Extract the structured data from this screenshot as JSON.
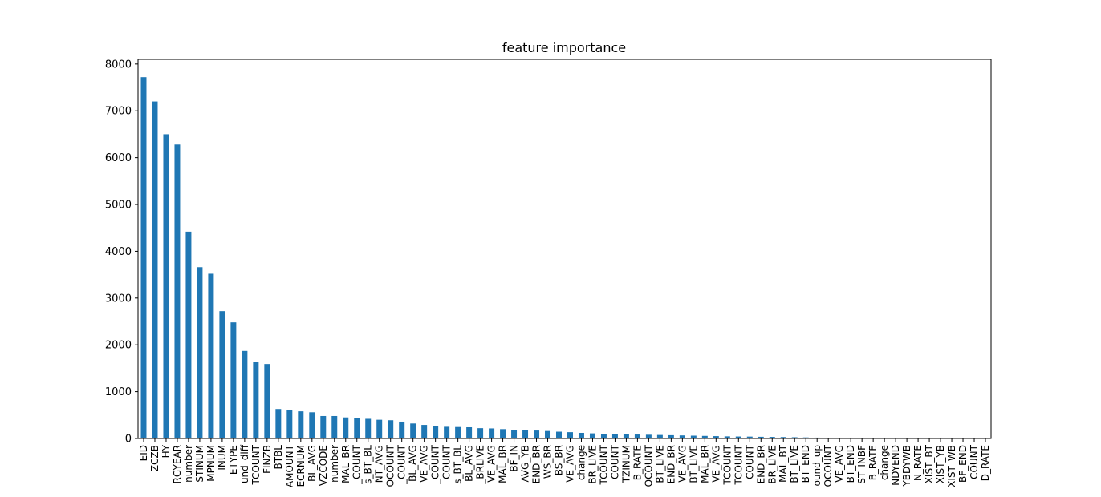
{
  "chart_data": {
    "type": "bar",
    "title": "feature importance",
    "xlabel": "",
    "ylabel": "",
    "ylim": [
      0,
      8100
    ],
    "yticks": [
      0,
      1000,
      2000,
      3000,
      4000,
      5000,
      6000,
      7000,
      8000
    ],
    "grid": false,
    "bar_color": "#1f77b4",
    "categories": [
      "EID",
      "ZCZB",
      "HY",
      "RGYEAR",
      "number",
      "STINUM",
      "MPNUM",
      "INUM",
      "ETYPE",
      "und_diff",
      "TCOUNT",
      "FINZB",
      "BTBL",
      "AMOUNT",
      "ECRNUM",
      "BL_AVG",
      "VZCODE",
      "number",
      "MAL_BR",
      "_COUNT",
      "s_BT_BL",
      "NT_AVG",
      "OCOUNT",
      "_COUNT",
      "BL_AVG",
      "VE_AVG",
      "_COUNT",
      "COUNT",
      "s_BT_BL",
      "BL_AVG",
      "_BRLIVE",
      "VE_AVG",
      "MAL_BR",
      "BF_IN",
      "AVG_YB",
      "END_BR",
      "WS_BR",
      "BS_BR",
      "VE_AVG",
      "change",
      "BR_LIVE",
      "TCOUNT",
      "COUNT",
      "TZINUM",
      "B_RATE",
      "OCOUNT",
      "BT_LIVE",
      "END_BR",
      "VE_AVG",
      "BT_LIVE",
      "MAL_BR",
      "VE_AVG",
      "TCOUNT",
      "TCOUNT",
      "COUNT",
      "END_BR",
      "BR_LIVE",
      "MAL_BT",
      "BT_LIVE",
      "BT_END",
      "ound_up",
      "OCOUNT",
      "VE_AVG",
      "BT_END",
      "ST_INBF",
      "B_RATE",
      "change",
      "NDYEND",
      "YBDYWB",
      "N_RATE",
      "XIST_BT",
      "XIST_YB",
      "XIST_WB",
      "BF_END",
      "COUNT",
      "D_RATE"
    ],
    "values": [
      7720,
      7200,
      6500,
      6280,
      4420,
      3660,
      3520,
      2720,
      2480,
      1870,
      1640,
      1590,
      630,
      610,
      580,
      560,
      480,
      480,
      450,
      440,
      420,
      400,
      390,
      360,
      320,
      290,
      270,
      250,
      245,
      240,
      220,
      215,
      200,
      185,
      180,
      170,
      160,
      145,
      135,
      120,
      110,
      100,
      95,
      90,
      85,
      80,
      75,
      70,
      65,
      60,
      55,
      50,
      45,
      42,
      40,
      36,
      33,
      30,
      26,
      22,
      18,
      14,
      8,
      5,
      4,
      3,
      3,
      2,
      2,
      2,
      1,
      1,
      1,
      1,
      1,
      1
    ]
  }
}
